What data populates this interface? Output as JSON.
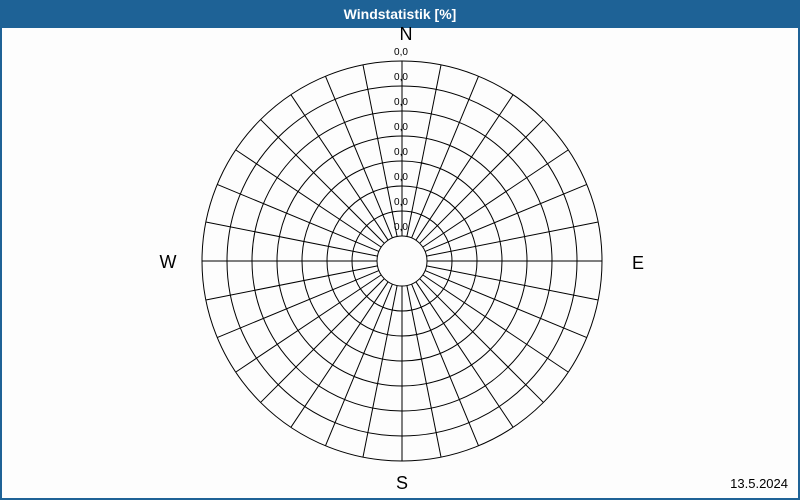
{
  "header": {
    "title": "Windstatistik [%]"
  },
  "footer": {
    "date": "13.5.2024"
  },
  "colors": {
    "accent_blue": "#1e6296",
    "background": "#fdfdfd",
    "grid_line": "#000000",
    "title_text": "#ffffff",
    "text": "#000000"
  },
  "chart_data": {
    "type": "polar",
    "subtype": "wind-rose-grid",
    "title": "Windstatistik [%]",
    "unit": "%",
    "sectors": 32,
    "sector_angle_deg": 11.25,
    "rings": 8,
    "grid": true,
    "radial_axis": {
      "tick_labels": [
        "0,0",
        "0,0",
        "0,0",
        "0,0",
        "0,0",
        "0,0",
        "0,0",
        "0,0"
      ],
      "tick_values": [
        0,
        0,
        0,
        0,
        0,
        0,
        0,
        0
      ],
      "decimal_separator": ",",
      "tick_axis_direction": "N"
    },
    "compass": {
      "north": "N",
      "east": "E",
      "south": "S",
      "west": "W"
    },
    "series": []
  }
}
